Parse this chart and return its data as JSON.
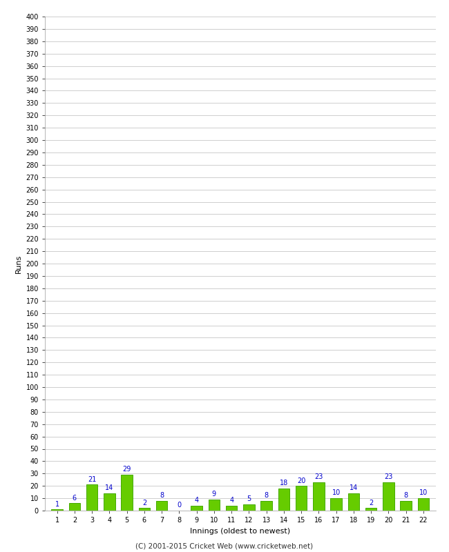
{
  "innings": [
    1,
    2,
    3,
    4,
    5,
    6,
    7,
    8,
    9,
    10,
    11,
    12,
    13,
    14,
    15,
    16,
    17,
    18,
    19,
    20,
    21,
    22
  ],
  "runs": [
    1,
    6,
    21,
    14,
    29,
    2,
    8,
    0,
    4,
    9,
    4,
    5,
    8,
    18,
    20,
    23,
    10,
    14,
    2,
    23,
    8,
    10
  ],
  "bar_color": "#66cc00",
  "bar_edge_color": "#44aa00",
  "label_color": "#0000cc",
  "xlabel": "Innings (oldest to newest)",
  "ylabel": "Runs",
  "footer": "(C) 2001-2015 Cricket Web (www.cricketweb.net)",
  "ylim": [
    0,
    400
  ],
  "background_color": "#ffffff",
  "grid_color": "#bbbbbb",
  "label_fontsize": 7,
  "axis_tick_fontsize": 7,
  "axis_label_fontsize": 8,
  "footer_fontsize": 7.5
}
